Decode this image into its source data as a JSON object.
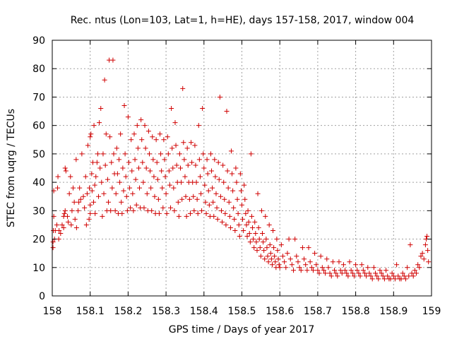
{
  "chart_data": {
    "type": "scatter",
    "title": "Rec. ntus (Lon=103, Lat=1, h=HE), days 157-158, 2017, window 004",
    "xlabel": "GPS time / Days of year 2017",
    "ylabel": "STEC from uqrg / TECUs",
    "xlim": [
      158,
      159
    ],
    "ylim": [
      0,
      90
    ],
    "xticks": [
      "158",
      "158.1",
      "158.2",
      "158.3",
      "158.4",
      "158.5",
      "158.6",
      "158.7",
      "158.8",
      "158.9",
      "159"
    ],
    "yticks": [
      "0",
      "10",
      "20",
      "30",
      "40",
      "50",
      "60",
      "70",
      "80",
      "90"
    ],
    "grid": true,
    "marker": "+",
    "color": "#d00000",
    "points": [
      [
        158.002,
        17
      ],
      [
        158.002,
        19
      ],
      [
        158.003,
        23
      ],
      [
        158.004,
        28
      ],
      [
        158.004,
        37
      ],
      [
        158.006,
        20
      ],
      [
        158.008,
        23
      ],
      [
        158.012,
        25
      ],
      [
        158.014,
        38
      ],
      [
        158.015,
        42
      ],
      [
        158.017,
        20
      ],
      [
        158.018,
        23
      ],
      [
        158.022,
        22
      ],
      [
        158.026,
        25
      ],
      [
        158.03,
        24
      ],
      [
        158.03,
        28
      ],
      [
        158.032,
        29
      ],
      [
        158.034,
        30
      ],
      [
        158.034,
        45
      ],
      [
        158.036,
        44
      ],
      [
        158.04,
        28
      ],
      [
        158.042,
        26
      ],
      [
        158.045,
        36
      ],
      [
        158.048,
        42
      ],
      [
        158.05,
        25
      ],
      [
        158.052,
        30
      ],
      [
        158.055,
        38
      ],
      [
        158.058,
        33
      ],
      [
        158.06,
        27
      ],
      [
        158.063,
        48
      ],
      [
        158.064,
        24
      ],
      [
        158.068,
        30
      ],
      [
        158.07,
        33
      ],
      [
        158.072,
        38
      ],
      [
        158.075,
        34
      ],
      [
        158.078,
        50
      ],
      [
        158.082,
        35
      ],
      [
        158.085,
        31
      ],
      [
        158.088,
        42
      ],
      [
        158.09,
        25
      ],
      [
        158.092,
        36
      ],
      [
        158.094,
        53
      ],
      [
        158.097,
        27
      ],
      [
        158.098,
        38
      ],
      [
        158.1,
        29
      ],
      [
        158.1,
        32
      ],
      [
        158.1,
        56
      ],
      [
        158.102,
        57
      ],
      [
        158.104,
        43
      ],
      [
        158.105,
        37
      ],
      [
        158.107,
        47
      ],
      [
        158.109,
        33
      ],
      [
        158.11,
        60
      ],
      [
        158.112,
        39
      ],
      [
        158.113,
        29
      ],
      [
        158.115,
        42
      ],
      [
        158.118,
        47
      ],
      [
        158.12,
        50
      ],
      [
        158.122,
        35
      ],
      [
        158.124,
        61
      ],
      [
        158.126,
        45
      ],
      [
        158.128,
        66
      ],
      [
        158.13,
        40
      ],
      [
        158.132,
        28
      ],
      [
        158.134,
        50
      ],
      [
        158.136,
        36
      ],
      [
        158.138,
        76
      ],
      [
        158.14,
        46
      ],
      [
        158.142,
        57
      ],
      [
        158.144,
        30
      ],
      [
        158.146,
        41
      ],
      [
        158.148,
        33
      ],
      [
        158.15,
        83
      ],
      [
        158.152,
        56
      ],
      [
        158.154,
        30
      ],
      [
        158.156,
        47
      ],
      [
        158.158,
        38
      ],
      [
        158.16,
        83
      ],
      [
        158.162,
        50
      ],
      [
        158.164,
        43
      ],
      [
        158.166,
        30
      ],
      [
        158.168,
        36
      ],
      [
        158.17,
        52
      ],
      [
        158.172,
        43
      ],
      [
        158.174,
        29
      ],
      [
        158.176,
        48
      ],
      [
        158.178,
        40
      ],
      [
        158.18,
        57
      ],
      [
        158.182,
        33
      ],
      [
        158.184,
        29
      ],
      [
        158.186,
        45
      ],
      [
        158.188,
        37
      ],
      [
        158.19,
        67
      ],
      [
        158.192,
        50
      ],
      [
        158.194,
        42
      ],
      [
        158.196,
        35
      ],
      [
        158.198,
        30
      ],
      [
        158.2,
        63
      ],
      [
        158.202,
        47
      ],
      [
        158.204,
        38
      ],
      [
        158.206,
        31
      ],
      [
        158.208,
        55
      ],
      [
        158.21,
        44
      ],
      [
        158.212,
        36
      ],
      [
        158.214,
        30
      ],
      [
        158.216,
        57
      ],
      [
        158.218,
        48
      ],
      [
        158.22,
        41
      ],
      [
        158.222,
        32
      ],
      [
        158.224,
        60
      ],
      [
        158.226,
        52
      ],
      [
        158.228,
        45
      ],
      [
        158.23,
        38
      ],
      [
        158.232,
        31
      ],
      [
        158.234,
        62
      ],
      [
        158.236,
        55
      ],
      [
        158.238,
        47
      ],
      [
        158.24,
        40
      ],
      [
        158.242,
        31
      ],
      [
        158.244,
        60
      ],
      [
        158.246,
        52
      ],
      [
        158.248,
        45
      ],
      [
        158.25,
        36
      ],
      [
        158.252,
        30
      ],
      [
        158.254,
        58
      ],
      [
        158.256,
        50
      ],
      [
        158.258,
        44
      ],
      [
        158.26,
        38
      ],
      [
        158.262,
        30
      ],
      [
        158.264,
        56
      ],
      [
        158.266,
        48
      ],
      [
        158.268,
        42
      ],
      [
        158.27,
        35
      ],
      [
        158.272,
        29
      ],
      [
        158.274,
        55
      ],
      [
        158.276,
        47
      ],
      [
        158.278,
        41
      ],
      [
        158.28,
        34
      ],
      [
        158.282,
        29
      ],
      [
        158.284,
        57
      ],
      [
        158.286,
        50
      ],
      [
        158.288,
        44
      ],
      [
        158.29,
        38
      ],
      [
        158.292,
        31
      ],
      [
        158.294,
        55
      ],
      [
        158.296,
        48
      ],
      [
        158.298,
        42
      ],
      [
        158.3,
        36
      ],
      [
        158.302,
        29
      ],
      [
        158.304,
        56
      ],
      [
        158.306,
        50
      ],
      [
        158.308,
        44
      ],
      [
        158.31,
        39
      ],
      [
        158.312,
        31
      ],
      [
        158.314,
        66
      ],
      [
        158.316,
        52
      ],
      [
        158.318,
        45
      ],
      [
        158.32,
        38
      ],
      [
        158.322,
        30
      ],
      [
        158.324,
        61
      ],
      [
        158.326,
        53
      ],
      [
        158.328,
        46
      ],
      [
        158.33,
        40
      ],
      [
        158.332,
        33
      ],
      [
        158.334,
        28
      ],
      [
        158.336,
        50
      ],
      [
        158.338,
        45
      ],
      [
        158.34,
        40
      ],
      [
        158.342,
        34
      ],
      [
        158.344,
        73
      ],
      [
        158.346,
        54
      ],
      [
        158.348,
        48
      ],
      [
        158.35,
        42
      ],
      [
        158.352,
        35
      ],
      [
        158.354,
        28
      ],
      [
        158.356,
        52
      ],
      [
        158.358,
        46
      ],
      [
        158.36,
        40
      ],
      [
        158.362,
        34
      ],
      [
        158.364,
        29
      ],
      [
        158.366,
        54
      ],
      [
        158.368,
        47
      ],
      [
        158.37,
        40
      ],
      [
        158.372,
        35
      ],
      [
        158.374,
        30
      ],
      [
        158.376,
        53
      ],
      [
        158.378,
        46
      ],
      [
        158.38,
        40
      ],
      [
        158.382,
        34
      ],
      [
        158.384,
        29
      ],
      [
        158.386,
        60
      ],
      [
        158.388,
        48
      ],
      [
        158.39,
        42
      ],
      [
        158.392,
        36
      ],
      [
        158.394,
        30
      ],
      [
        158.396,
        66
      ],
      [
        158.398,
        50
      ],
      [
        158.4,
        45
      ],
      [
        158.402,
        39
      ],
      [
        158.404,
        33
      ],
      [
        158.406,
        29
      ],
      [
        158.408,
        48
      ],
      [
        158.41,
        43
      ],
      [
        158.412,
        37
      ],
      [
        158.414,
        32
      ],
      [
        158.416,
        28
      ],
      [
        158.418,
        50
      ],
      [
        158.42,
        44
      ],
      [
        158.422,
        38
      ],
      [
        158.424,
        33
      ],
      [
        158.426,
        28
      ],
      [
        158.428,
        48
      ],
      [
        158.43,
        42
      ],
      [
        158.432,
        36
      ],
      [
        158.434,
        31
      ],
      [
        158.436,
        27
      ],
      [
        158.438,
        47
      ],
      [
        158.44,
        41
      ],
      [
        158.442,
        70
      ],
      [
        158.444,
        35
      ],
      [
        158.446,
        30
      ],
      [
        158.448,
        26
      ],
      [
        158.45,
        46
      ],
      [
        158.452,
        40
      ],
      [
        158.454,
        34
      ],
      [
        158.456,
        29
      ],
      [
        158.458,
        25
      ],
      [
        158.46,
        65
      ],
      [
        158.462,
        44
      ],
      [
        158.464,
        38
      ],
      [
        158.466,
        33
      ],
      [
        158.468,
        28
      ],
      [
        158.47,
        24
      ],
      [
        158.472,
        51
      ],
      [
        158.474,
        43
      ],
      [
        158.476,
        37
      ],
      [
        158.478,
        31
      ],
      [
        158.48,
        27
      ],
      [
        158.482,
        23
      ],
      [
        158.484,
        45
      ],
      [
        158.486,
        40
      ],
      [
        158.488,
        34
      ],
      [
        158.49,
        29
      ],
      [
        158.492,
        25
      ],
      [
        158.494,
        21
      ],
      [
        158.496,
        43
      ],
      [
        158.498,
        37
      ],
      [
        158.5,
        32
      ],
      [
        158.502,
        27
      ],
      [
        158.504,
        23
      ],
      [
        158.506,
        39
      ],
      [
        158.508,
        34
      ],
      [
        158.51,
        29
      ],
      [
        158.512,
        25
      ],
      [
        158.514,
        21
      ],
      [
        158.516,
        30
      ],
      [
        158.518,
        26
      ],
      [
        158.52,
        22
      ],
      [
        158.522,
        19
      ],
      [
        158.524,
        50
      ],
      [
        158.526,
        28
      ],
      [
        158.528,
        24
      ],
      [
        158.53,
        20
      ],
      [
        158.532,
        17
      ],
      [
        158.534,
        26
      ],
      [
        158.536,
        22
      ],
      [
        158.538,
        19
      ],
      [
        158.54,
        16
      ],
      [
        158.542,
        36
      ],
      [
        158.544,
        24
      ],
      [
        158.546,
        20
      ],
      [
        158.548,
        17
      ],
      [
        158.55,
        14
      ],
      [
        158.552,
        30
      ],
      [
        158.554,
        22
      ],
      [
        158.556,
        19
      ],
      [
        158.558,
        16
      ],
      [
        158.56,
        13
      ],
      [
        158.562,
        28
      ],
      [
        158.564,
        20
      ],
      [
        158.566,
        17
      ],
      [
        158.568,
        14
      ],
      [
        158.57,
        12
      ],
      [
        158.572,
        25
      ],
      [
        158.574,
        18
      ],
      [
        158.576,
        15
      ],
      [
        158.578,
        13
      ],
      [
        158.58,
        11
      ],
      [
        158.582,
        23
      ],
      [
        158.584,
        17
      ],
      [
        158.586,
        14
      ],
      [
        158.588,
        12
      ],
      [
        158.59,
        10
      ],
      [
        158.592,
        20
      ],
      [
        158.594,
        16
      ],
      [
        158.596,
        13
      ],
      [
        158.598,
        11
      ],
      [
        158.6,
        10
      ],
      [
        158.604,
        18
      ],
      [
        158.608,
        14
      ],
      [
        158.612,
        12
      ],
      [
        158.616,
        10
      ],
      [
        158.62,
        15
      ],
      [
        158.624,
        20
      ],
      [
        158.628,
        13
      ],
      [
        158.632,
        11
      ],
      [
        158.636,
        9
      ],
      [
        158.64,
        20
      ],
      [
        158.644,
        14
      ],
      [
        158.648,
        12
      ],
      [
        158.652,
        10
      ],
      [
        158.656,
        9
      ],
      [
        158.66,
        17
      ],
      [
        158.664,
        13
      ],
      [
        158.668,
        11
      ],
      [
        158.672,
        9
      ],
      [
        158.676,
        17
      ],
      [
        158.68,
        12
      ],
      [
        158.684,
        10
      ],
      [
        158.688,
        9
      ],
      [
        158.692,
        15
      ],
      [
        158.696,
        11
      ],
      [
        158.7,
        9
      ],
      [
        158.704,
        8
      ],
      [
        158.708,
        14
      ],
      [
        158.712,
        10
      ],
      [
        158.716,
        9
      ],
      [
        158.72,
        8
      ],
      [
        158.724,
        13
      ],
      [
        158.728,
        10
      ],
      [
        158.732,
        8
      ],
      [
        158.736,
        7
      ],
      [
        158.74,
        12
      ],
      [
        158.744,
        9
      ],
      [
        158.748,
        8
      ],
      [
        158.752,
        7
      ],
      [
        158.756,
        12
      ],
      [
        158.76,
        9
      ],
      [
        158.764,
        8
      ],
      [
        158.768,
        11
      ],
      [
        158.772,
        9
      ],
      [
        158.776,
        8
      ],
      [
        158.78,
        7
      ],
      [
        158.784,
        12
      ],
      [
        158.788,
        9
      ],
      [
        158.792,
        8
      ],
      [
        158.796,
        7
      ],
      [
        158.8,
        11
      ],
      [
        158.804,
        9
      ],
      [
        158.808,
        8
      ],
      [
        158.812,
        7
      ],
      [
        158.816,
        11
      ],
      [
        158.82,
        9
      ],
      [
        158.824,
        8
      ],
      [
        158.828,
        7
      ],
      [
        158.832,
        10
      ],
      [
        158.836,
        8
      ],
      [
        158.84,
        7
      ],
      [
        158.844,
        6
      ],
      [
        158.848,
        10
      ],
      [
        158.852,
        8
      ],
      [
        158.856,
        7
      ],
      [
        158.86,
        6
      ],
      [
        158.864,
        9
      ],
      [
        158.868,
        8
      ],
      [
        158.872,
        7
      ],
      [
        158.876,
        6
      ],
      [
        158.88,
        9
      ],
      [
        158.884,
        7
      ],
      [
        158.888,
        6
      ],
      [
        158.892,
        6
      ],
      [
        158.896,
        8
      ],
      [
        158.9,
        7
      ],
      [
        158.904,
        6
      ],
      [
        158.908,
        11
      ],
      [
        158.912,
        7
      ],
      [
        158.916,
        6
      ],
      [
        158.92,
        6
      ],
      [
        158.924,
        8
      ],
      [
        158.928,
        7
      ],
      [
        158.932,
        6
      ],
      [
        158.936,
        10
      ],
      [
        158.94,
        7
      ],
      [
        158.944,
        18
      ],
      [
        158.948,
        8
      ],
      [
        158.952,
        7
      ],
      [
        158.956,
        9
      ],
      [
        158.96,
        8
      ],
      [
        158.964,
        11
      ],
      [
        158.968,
        10
      ],
      [
        158.972,
        14
      ],
      [
        158.976,
        15
      ],
      [
        158.98,
        13
      ],
      [
        158.984,
        18
      ],
      [
        158.986,
        20
      ],
      [
        158.988,
        21
      ],
      [
        158.99,
        16
      ],
      [
        158.992,
        12
      ]
    ]
  }
}
